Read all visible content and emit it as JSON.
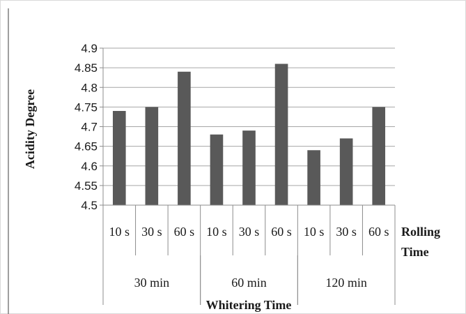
{
  "chart_data": {
    "type": "bar",
    "title": "",
    "ylabel": "Acidity Degree",
    "xlabel": "Whitering Time",
    "secondary_xlabel": [
      "Rolling",
      "Time"
    ],
    "ylim": [
      4.5,
      4.9
    ],
    "yticks": [
      "4.5",
      "4.55",
      "4.6",
      "4.65",
      "4.7",
      "4.75",
      "4.8",
      "4.85",
      "4.9"
    ],
    "groups": [
      {
        "label": "30 min",
        "categories": [
          "10 s",
          "30 s",
          "60 s"
        ],
        "values": [
          4.74,
          4.75,
          4.84
        ]
      },
      {
        "label": "60 min",
        "categories": [
          "10 s",
          "30 s",
          "60 s"
        ],
        "values": [
          4.68,
          4.69,
          4.86
        ]
      },
      {
        "label": "120 min",
        "categories": [
          "10 s",
          "30 s",
          "60 s"
        ],
        "values": [
          4.64,
          4.67,
          4.75
        ]
      }
    ],
    "grid": true,
    "legend": "none",
    "colors": {
      "bar": "#595959",
      "grid": "#a6a6a6",
      "axis": "#8c8c8c",
      "border": "#d9d9d9"
    }
  }
}
